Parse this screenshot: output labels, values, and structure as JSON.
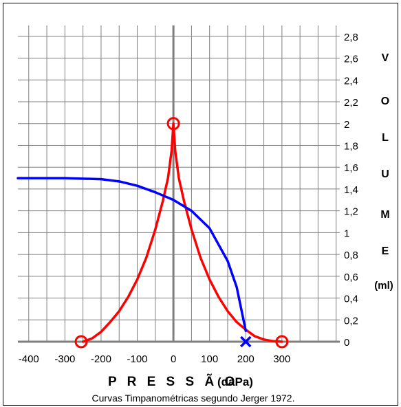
{
  "chart_data": {
    "type": "line",
    "title": "",
    "xlabel": "P R E S S Ã O",
    "xlabel_unit": "(daPa)",
    "ylabel_letters": [
      "V",
      "O",
      "L",
      "U",
      "M",
      "E"
    ],
    "ylabel_unit": "(ml)",
    "caption": "Curvas Timpanométricas segundo Jerger 1972.",
    "xlim": [
      -430,
      460
    ],
    "ylim": [
      0,
      2.9
    ],
    "x_ticks": [
      -400,
      -300,
      -200,
      -100,
      0,
      100,
      200,
      300
    ],
    "y_ticks": [
      {
        "value": 0,
        "label": "0"
      },
      {
        "value": 0.2,
        "label": "0,2"
      },
      {
        "value": 0.4,
        "label": "0,4"
      },
      {
        "value": 0.6,
        "label": "0,6"
      },
      {
        "value": 0.8,
        "label": "0,8"
      },
      {
        "value": 1.0,
        "label": "1"
      },
      {
        "value": 1.2,
        "label": "1,2"
      },
      {
        "value": 1.4,
        "label": "1,4"
      },
      {
        "value": 1.6,
        "label": "1,6"
      },
      {
        "value": 1.8,
        "label": "1,8"
      },
      {
        "value": 2.0,
        "label": "2"
      },
      {
        "value": 2.2,
        "label": "2,2"
      },
      {
        "value": 2.4,
        "label": "2,4"
      },
      {
        "value": 2.6,
        "label": "2,6"
      },
      {
        "value": 2.8,
        "label": "2,8"
      }
    ],
    "grid": true,
    "grid_x_step": 50,
    "grid_y_step": 0.2,
    "series": [
      {
        "color": "#ff0000",
        "x": [
          -250,
          -225,
          -200,
          -175,
          -150,
          -125,
          -100,
          -75,
          -50,
          -30,
          -15,
          -5,
          0,
          5,
          15,
          30,
          50,
          75,
          100,
          125,
          150,
          175,
          200,
          225,
          250,
          275,
          300
        ],
        "y": [
          0,
          0.03,
          0.09,
          0.18,
          0.28,
          0.41,
          0.57,
          0.77,
          1.03,
          1.28,
          1.5,
          1.75,
          2.0,
          1.75,
          1.5,
          1.28,
          1.03,
          0.77,
          0.57,
          0.41,
          0.28,
          0.18,
          0.11,
          0.05,
          0.02,
          0.005,
          0
        ],
        "markers": [
          {
            "x": -255,
            "y": 0,
            "symbol": "circle"
          },
          {
            "x": 0,
            "y": 2.0,
            "symbol": "circle"
          },
          {
            "x": 300,
            "y": 0,
            "symbol": "circle"
          }
        ]
      },
      {
        "color": "#0000ff",
        "x": [
          -430,
          -300,
          -200,
          -150,
          -100,
          -50,
          0,
          50,
          100,
          150,
          175,
          200
        ],
        "y": [
          1.5,
          1.5,
          1.49,
          1.47,
          1.43,
          1.37,
          1.3,
          1.2,
          1.04,
          0.74,
          0.5,
          0.1
        ],
        "markers": [
          {
            "x": 200,
            "y": 0,
            "symbol": "x"
          }
        ]
      }
    ]
  }
}
